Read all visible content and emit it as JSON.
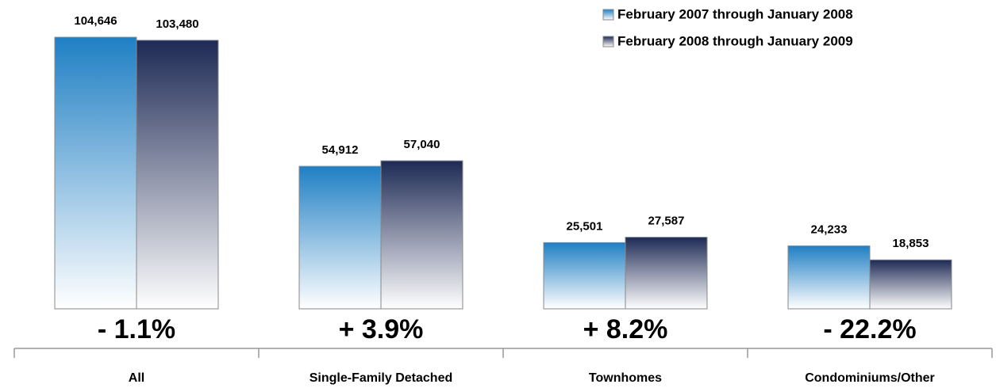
{
  "chart_data": {
    "type": "bar",
    "categories": [
      "All",
      "Single-Family Detached",
      "Townhomes",
      "Condominiums/Other"
    ],
    "series": [
      {
        "name": "February 2007 through January 2008",
        "color": "#1f7fc4",
        "values": [
          104646,
          54912,
          25501,
          24233
        ],
        "value_labels": [
          "104,646",
          "54,912",
          "25,501",
          "24,233"
        ]
      },
      {
        "name": "February 2008 through January 2009",
        "color": "#1e2a55",
        "values": [
          103480,
          57040,
          27587,
          18853
        ],
        "value_labels": [
          "103,480",
          "57,040",
          "27,587",
          "18,853"
        ]
      }
    ],
    "annotations": [
      "- 1.1%",
      "+ 3.9%",
      "+ 8.2%",
      "- 22.2%"
    ],
    "ylim": [
      0,
      119000
    ],
    "legend": "top-right"
  }
}
